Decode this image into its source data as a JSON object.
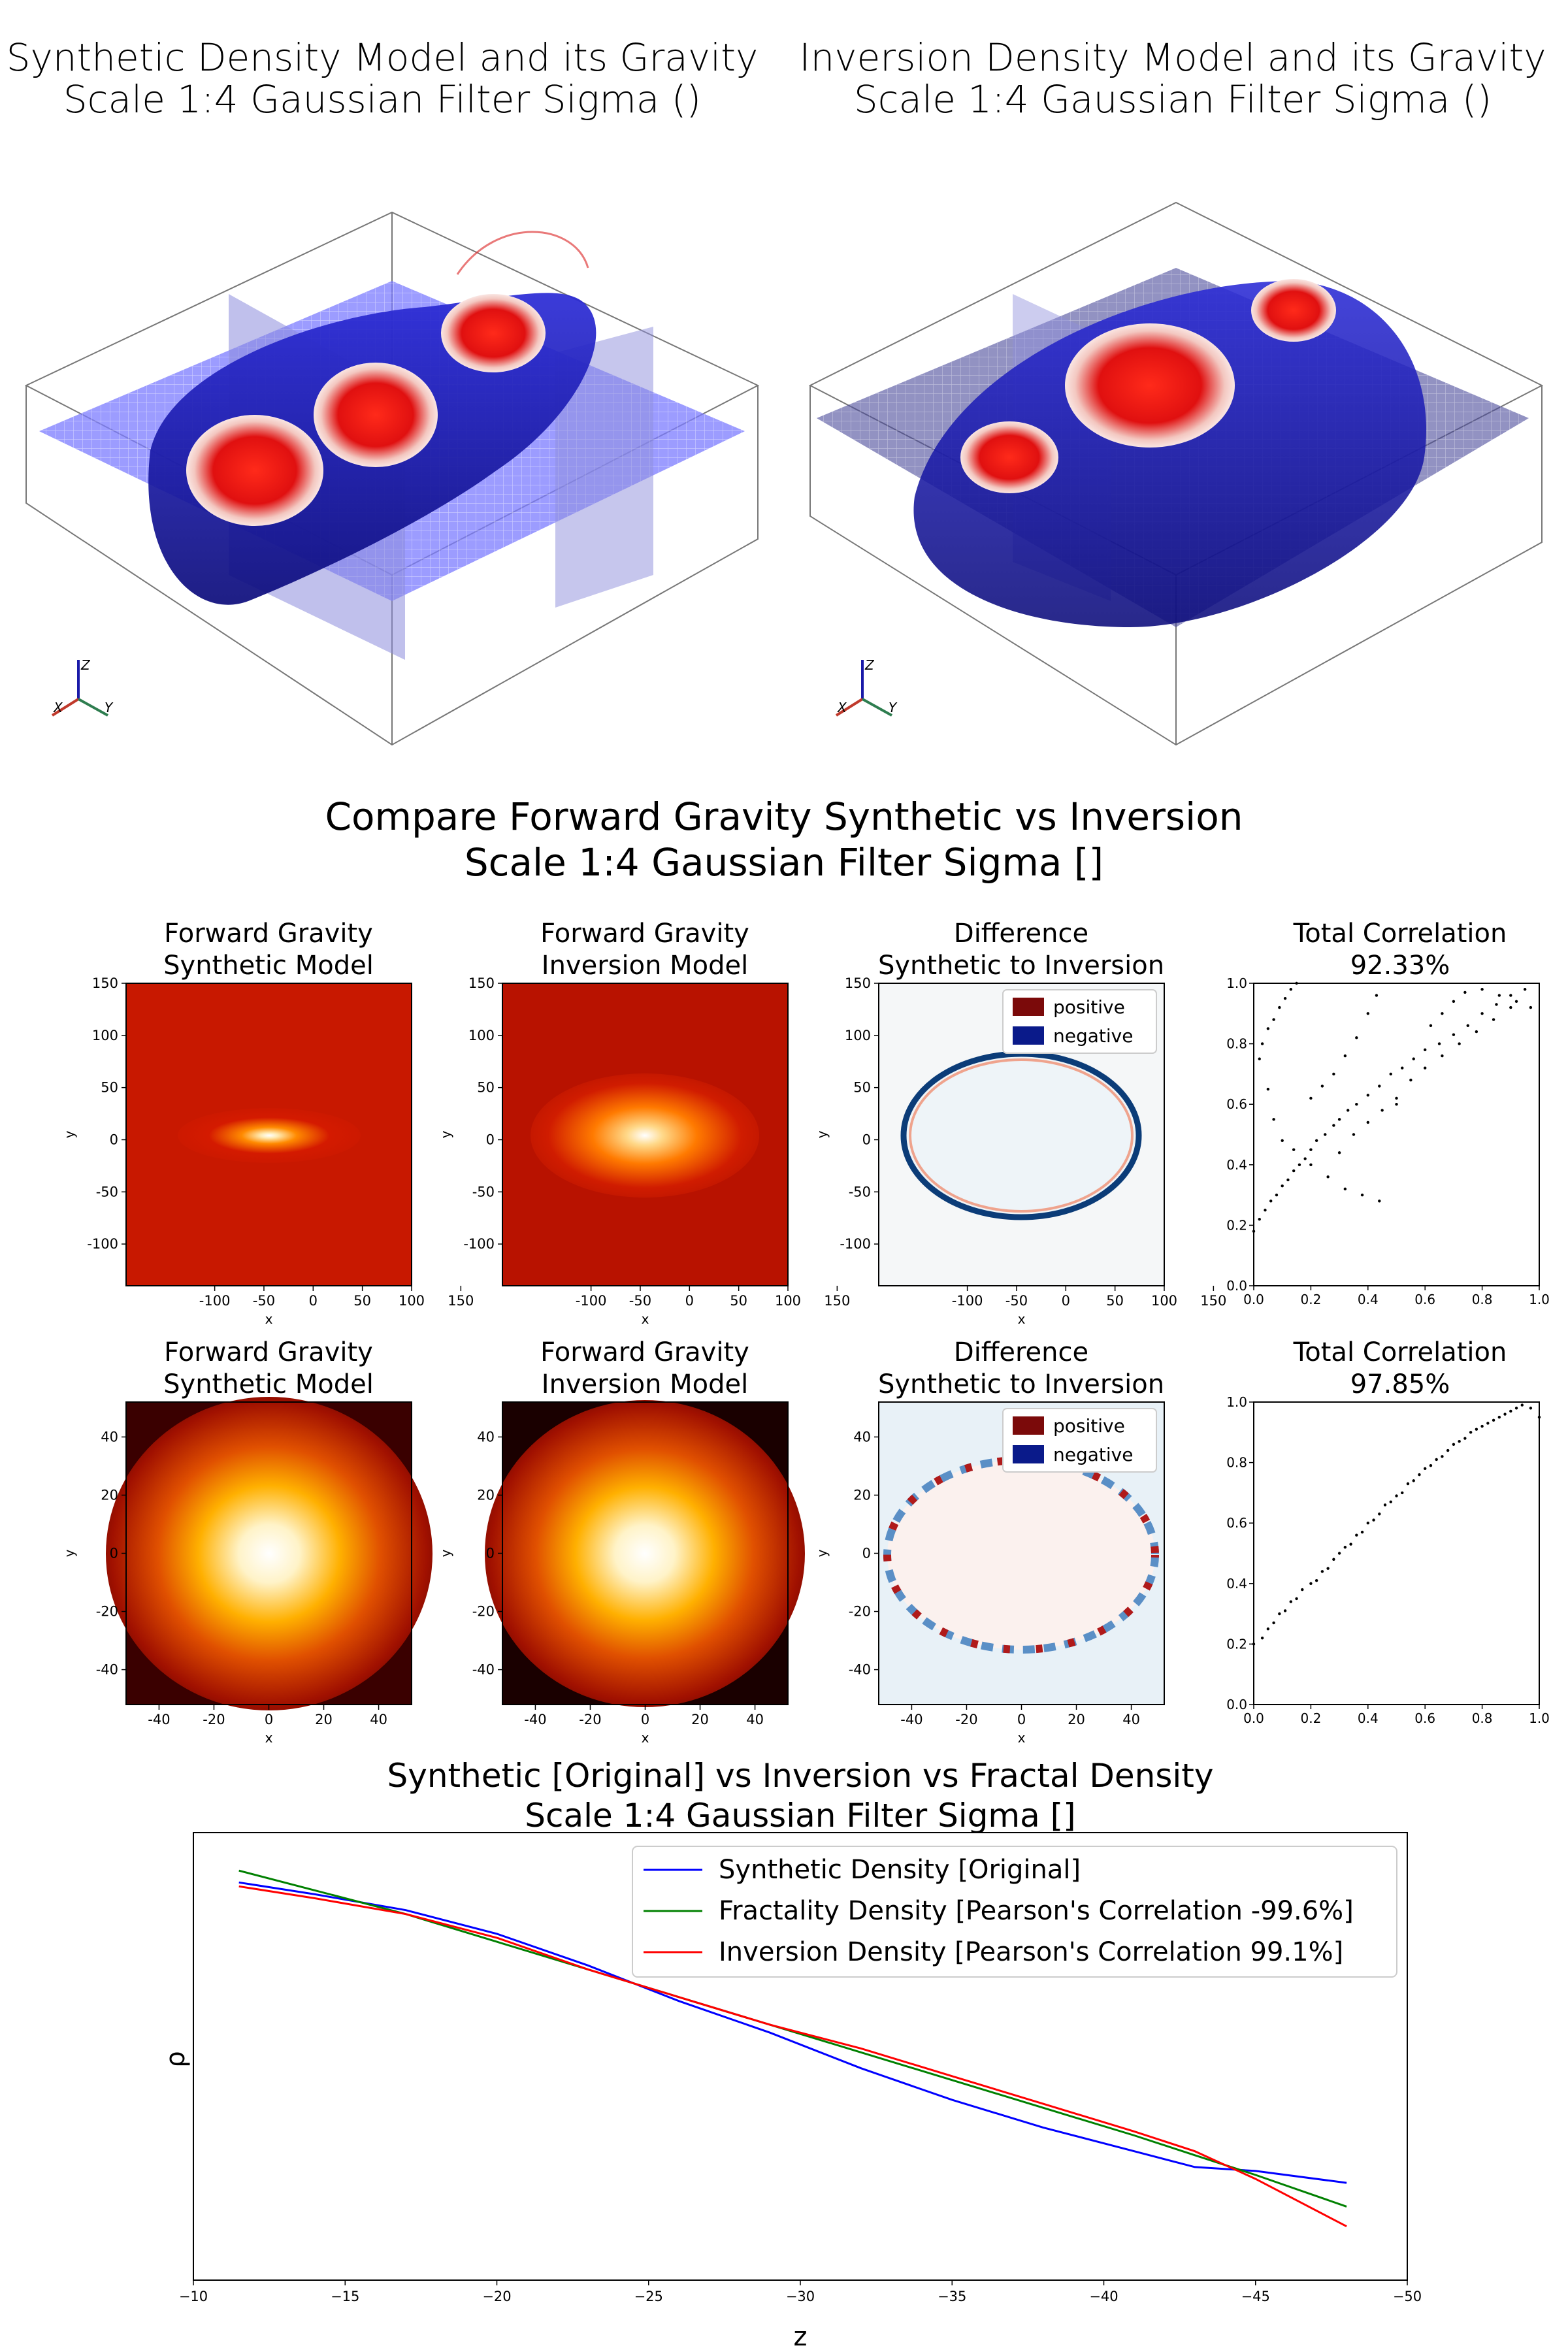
{
  "render_panels": {
    "left_title_1": "Synthetic Density Model and its Gravity",
    "left_title_2": "Scale 1:4 Gaussian Filter Sigma ()",
    "right_title_1": "Inversion Density Model and its Gravity",
    "right_title_2": "Scale 1:4 Gaussian Filter Sigma ()",
    "axis_labels": [
      "X",
      "Y",
      "Z"
    ],
    "colors": {
      "positive": "#d7191c",
      "negative": "#1f1fb4",
      "plane": "#7b7bff"
    }
  },
  "compare": {
    "title_1": "Compare Forward Gravity Synthetic vs Inversion",
    "title_2": "Scale 1:4 Gaussian Filter Sigma []"
  },
  "rows": [
    {
      "panels": [
        {
          "title_1": "Forward Gravity",
          "title_2": "Synthetic Model"
        },
        {
          "title_1": "Forward Gravity",
          "title_2": "Inversion Model"
        },
        {
          "title_1": "Difference",
          "title_2": "Synthetic to Inversion"
        }
      ],
      "xticks": [
        "-100",
        "-50",
        "0",
        "50",
        "100",
        "150"
      ],
      "yticks": [
        "150",
        "100",
        "50",
        "0",
        "-50",
        "-100"
      ],
      "xlabel": "x",
      "ylabel": "y",
      "legend": [
        "positive",
        "negative"
      ],
      "correlation_title": "Total Correlation",
      "correlation_value": "92.33%"
    },
    {
      "panels": [
        {
          "title_1": "Forward Gravity",
          "title_2": "Synthetic Model"
        },
        {
          "title_1": "Forward Gravity",
          "title_2": "Inversion Model"
        },
        {
          "title_1": "Difference",
          "title_2": "Synthetic to Inversion"
        }
      ],
      "xticks": [
        "-40",
        "-20",
        "0",
        "20",
        "40"
      ],
      "yticks": [
        "40",
        "20",
        "0",
        "-20",
        "-40"
      ],
      "xlabel": "x",
      "ylabel": "y",
      "legend": [
        "positive",
        "negative"
      ],
      "correlation_title": "Total Correlation",
      "correlation_value": "97.85%"
    }
  ],
  "scatter_ticks": [
    "0.0",
    "0.2",
    "0.4",
    "0.6",
    "0.8",
    "1.0"
  ],
  "chart_data": [
    {
      "type": "scatter",
      "title": "Total Correlation 92.33%",
      "xlim": [
        0,
        1
      ],
      "ylim": [
        0,
        1
      ],
      "points": [
        [
          0.0,
          0.18
        ],
        [
          0.02,
          0.22
        ],
        [
          0.04,
          0.25
        ],
        [
          0.06,
          0.28
        ],
        [
          0.08,
          0.3
        ],
        [
          0.1,
          0.33
        ],
        [
          0.12,
          0.35
        ],
        [
          0.14,
          0.38
        ],
        [
          0.16,
          0.4
        ],
        [
          0.18,
          0.42
        ],
        [
          0.2,
          0.45
        ],
        [
          0.22,
          0.48
        ],
        [
          0.25,
          0.5
        ],
        [
          0.28,
          0.53
        ],
        [
          0.3,
          0.55
        ],
        [
          0.33,
          0.58
        ],
        [
          0.36,
          0.6
        ],
        [
          0.4,
          0.63
        ],
        [
          0.44,
          0.66
        ],
        [
          0.48,
          0.7
        ],
        [
          0.52,
          0.72
        ],
        [
          0.56,
          0.75
        ],
        [
          0.6,
          0.78
        ],
        [
          0.65,
          0.8
        ],
        [
          0.7,
          0.83
        ],
        [
          0.75,
          0.86
        ],
        [
          0.8,
          0.9
        ],
        [
          0.85,
          0.93
        ],
        [
          0.9,
          0.96
        ],
        [
          0.95,
          0.98
        ],
        [
          0.02,
          0.75
        ],
        [
          0.03,
          0.8
        ],
        [
          0.05,
          0.85
        ],
        [
          0.07,
          0.88
        ],
        [
          0.09,
          0.92
        ],
        [
          0.11,
          0.95
        ],
        [
          0.13,
          0.98
        ],
        [
          0.15,
          1.0
        ],
        [
          0.05,
          0.65
        ],
        [
          0.07,
          0.55
        ],
        [
          0.1,
          0.48
        ],
        [
          0.14,
          0.45
        ],
        [
          0.2,
          0.4
        ],
        [
          0.26,
          0.36
        ],
        [
          0.32,
          0.32
        ],
        [
          0.38,
          0.3
        ],
        [
          0.44,
          0.28
        ],
        [
          0.2,
          0.62
        ],
        [
          0.24,
          0.66
        ],
        [
          0.28,
          0.7
        ],
        [
          0.32,
          0.76
        ],
        [
          0.36,
          0.82
        ],
        [
          0.4,
          0.9
        ],
        [
          0.43,
          0.96
        ],
        [
          0.5,
          0.62
        ],
        [
          0.55,
          0.68
        ],
        [
          0.6,
          0.72
        ],
        [
          0.66,
          0.76
        ],
        [
          0.72,
          0.8
        ],
        [
          0.78,
          0.84
        ],
        [
          0.84,
          0.88
        ],
        [
          0.9,
          0.92
        ],
        [
          0.3,
          0.44
        ],
        [
          0.35,
          0.5
        ],
        [
          0.4,
          0.54
        ],
        [
          0.45,
          0.58
        ],
        [
          0.5,
          0.6
        ],
        [
          0.62,
          0.86
        ],
        [
          0.66,
          0.9
        ],
        [
          0.7,
          0.94
        ],
        [
          0.74,
          0.97
        ],
        [
          0.8,
          0.98
        ],
        [
          0.86,
          0.96
        ],
        [
          0.92,
          0.94
        ],
        [
          0.97,
          0.92
        ]
      ]
    },
    {
      "type": "scatter",
      "title": "Total Correlation 97.85%",
      "xlim": [
        0,
        1
      ],
      "ylim": [
        0,
        1
      ],
      "points": [
        [
          0.0,
          0.2
        ],
        [
          0.03,
          0.22
        ],
        [
          0.05,
          0.25
        ],
        [
          0.07,
          0.27
        ],
        [
          0.09,
          0.3
        ],
        [
          0.11,
          0.31
        ],
        [
          0.13,
          0.34
        ],
        [
          0.15,
          0.35
        ],
        [
          0.17,
          0.38
        ],
        [
          0.2,
          0.4
        ],
        [
          0.22,
          0.41
        ],
        [
          0.24,
          0.44
        ],
        [
          0.26,
          0.45
        ],
        [
          0.28,
          0.48
        ],
        [
          0.3,
          0.5
        ],
        [
          0.32,
          0.52
        ],
        [
          0.34,
          0.53
        ],
        [
          0.36,
          0.56
        ],
        [
          0.38,
          0.57
        ],
        [
          0.4,
          0.6
        ],
        [
          0.42,
          0.61
        ],
        [
          0.44,
          0.63
        ],
        [
          0.46,
          0.66
        ],
        [
          0.48,
          0.67
        ],
        [
          0.5,
          0.69
        ],
        [
          0.52,
          0.7
        ],
        [
          0.54,
          0.73
        ],
        [
          0.56,
          0.74
        ],
        [
          0.58,
          0.76
        ],
        [
          0.6,
          0.78
        ],
        [
          0.62,
          0.79
        ],
        [
          0.64,
          0.81
        ],
        [
          0.66,
          0.82
        ],
        [
          0.68,
          0.84
        ],
        [
          0.7,
          0.86
        ],
        [
          0.72,
          0.87
        ],
        [
          0.74,
          0.88
        ],
        [
          0.76,
          0.9
        ],
        [
          0.78,
          0.91
        ],
        [
          0.8,
          0.92
        ],
        [
          0.82,
          0.93
        ],
        [
          0.84,
          0.94
        ],
        [
          0.86,
          0.95
        ],
        [
          0.88,
          0.96
        ],
        [
          0.9,
          0.97
        ],
        [
          0.92,
          0.98
        ],
        [
          0.94,
          0.99
        ],
        [
          0.97,
          0.98
        ],
        [
          1.0,
          0.95
        ]
      ]
    },
    {
      "type": "line",
      "title": "Synthetic [Original] vs Inversion vs Fractal Density",
      "subtitle": "Scale 1:4 Gaussian Filter Sigma []",
      "xlabel": "z",
      "ylabel": "ρ",
      "xlim": [
        -10,
        -50
      ],
      "ylim": [
        0,
        1
      ],
      "xticks": [
        "-10",
        "-15",
        "-20",
        "-25",
        "-30",
        "-35",
        "-40",
        "-45",
        "-50"
      ],
      "series": [
        {
          "name": "Synthetic Density [Original]",
          "color": "#0000ff",
          "x": [
            -11.5,
            -14,
            -17,
            -20,
            -23,
            -26,
            -29,
            -32,
            -35,
            -38,
            -41,
            -43,
            -45,
            -48
          ],
          "y": [
            0.94,
            0.91,
            0.87,
            0.81,
            0.73,
            0.64,
            0.56,
            0.47,
            0.39,
            0.32,
            0.26,
            0.22,
            0.21,
            0.18
          ]
        },
        {
          "name": "Fractality Density [Pearson's Correlation -99.6%]",
          "color": "#008000",
          "x": [
            -11.5,
            -14,
            -17,
            -20,
            -23,
            -26,
            -29,
            -32,
            -35,
            -38,
            -41,
            -43,
            -45,
            -48
          ],
          "y": [
            0.97,
            0.92,
            0.86,
            0.79,
            0.72,
            0.65,
            0.58,
            0.51,
            0.44,
            0.37,
            0.3,
            0.25,
            0.2,
            0.12
          ]
        },
        {
          "name": "Inversion Density [Pearson's Correlation 99.1%]",
          "color": "#ff0000",
          "x": [
            -11.5,
            -14,
            -17,
            -20,
            -23,
            -26,
            -29,
            -32,
            -35,
            -38,
            -41,
            -43,
            -45,
            -48
          ],
          "y": [
            0.93,
            0.9,
            0.86,
            0.8,
            0.72,
            0.65,
            0.58,
            0.52,
            0.45,
            0.38,
            0.31,
            0.26,
            0.19,
            0.07
          ]
        }
      ]
    }
  ]
}
